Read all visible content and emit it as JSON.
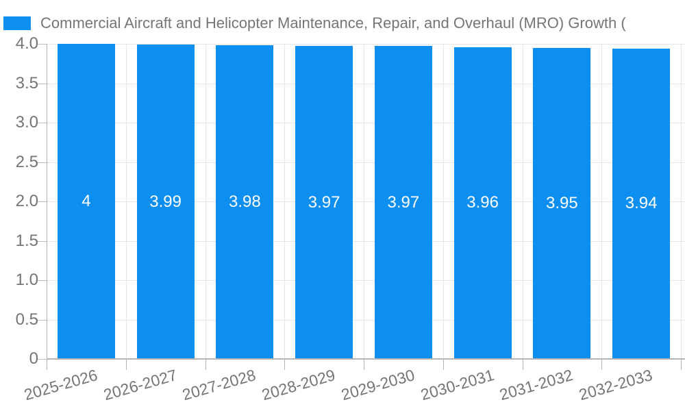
{
  "legend": {
    "label": "Commercial Aircraft and Helicopter Maintenance, Repair, and Overhaul (MRO) Growth (",
    "swatch_color": "#0d8ff2"
  },
  "chart_data": {
    "type": "bar",
    "title": "Commercial Aircraft and Helicopter Maintenance, Repair, and Overhaul (MRO) Growth (",
    "categories": [
      "2025-2026",
      "2026-2027",
      "2027-2028",
      "2028-2029",
      "2029-2030",
      "2030-2031",
      "2031-2032",
      "2032-2033"
    ],
    "values": [
      4,
      3.99,
      3.98,
      3.97,
      3.97,
      3.96,
      3.95,
      3.94
    ],
    "bar_value_labels": [
      "4",
      "3.99",
      "3.98",
      "3.97",
      "3.97",
      "3.96",
      "3.95",
      "3.94"
    ],
    "xlabel": "",
    "ylabel": "",
    "ylim": [
      0,
      4
    ],
    "ytick_values": [
      4.0,
      3.5,
      3.0,
      2.5,
      2.0,
      1.5,
      1.0,
      0.5,
      0
    ],
    "ytick_labels": [
      "4.0",
      "3.5",
      "3.0",
      "2.5",
      "2.0",
      "1.5",
      "1.0",
      "0.5",
      "0"
    ],
    "grid": true,
    "legend_position": "top-left",
    "x_label_rotation_deg": -16,
    "colors": {
      "bar": "#0d8ff2",
      "value_label": "#ffffff",
      "axis_text": "#757575",
      "gridline": "#e6e6e6",
      "axis_line": "#b3b3b3"
    }
  }
}
